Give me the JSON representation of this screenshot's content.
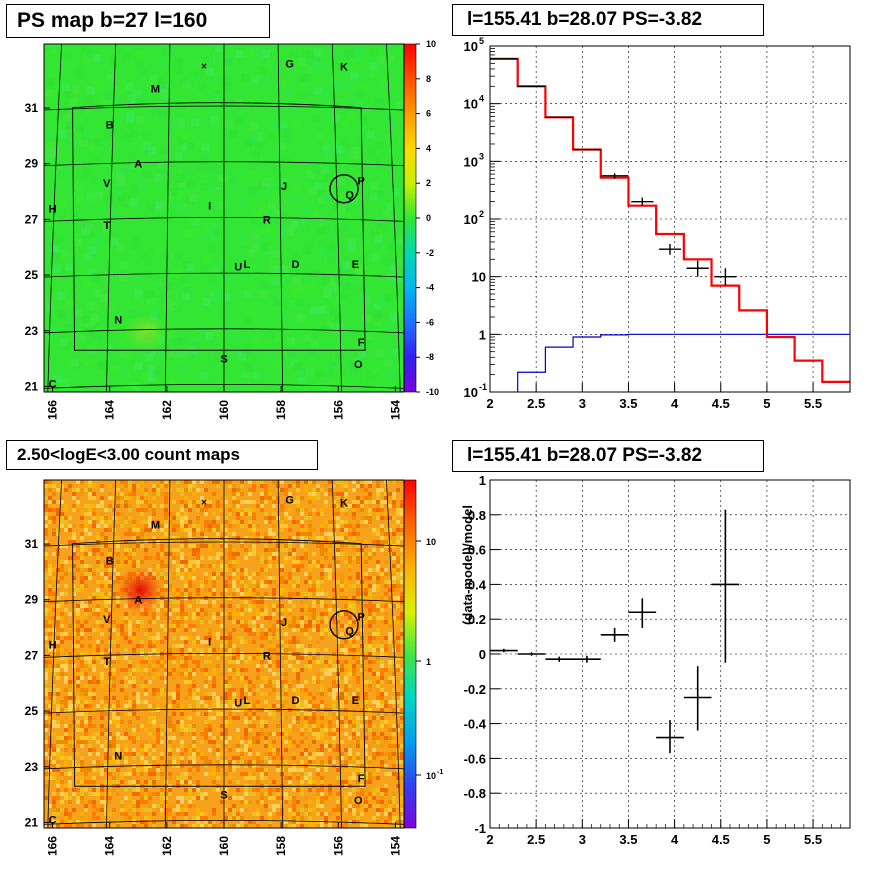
{
  "panels": {
    "top_left_title": "PS map b=27 l=160",
    "top_right_title": "l=155.41 b=28.07 PS=-3.82",
    "bottom_left_title": "2.50<logE<3.00 count maps",
    "bottom_right_title": "l=155.41 b=28.07 PS=-3.82"
  },
  "colors": {
    "map_green": "#33e633",
    "map_orange": "#f6a21d",
    "model_red": "#ff0000",
    "background_blue": "#0000cc",
    "data_black": "#000000"
  },
  "chart_data": [
    {
      "type": "heatmap",
      "title": "PS map b=27 l=160",
      "x_ticks": [
        "166",
        "164",
        "162",
        "160",
        "158",
        "156",
        "154"
      ],
      "y_ticks": [
        "31",
        "29",
        "27",
        "25",
        "23",
        "21"
      ],
      "colorbar_ticks": [
        "10",
        "8",
        "6",
        "4",
        "2",
        "0",
        "-2",
        "-4",
        "-6",
        "-8",
        "-10"
      ],
      "zlim": [
        -10,
        10
      ],
      "sources": [
        {
          "label": "G",
          "l": 157.7,
          "b": 32.6
        },
        {
          "label": "K",
          "l": 155.8,
          "b": 32.5
        },
        {
          "label": "M",
          "l": 162.4,
          "b": 31.7
        },
        {
          "label": "B",
          "l": 164.0,
          "b": 30.4
        },
        {
          "label": "A",
          "l": 163.0,
          "b": 29.0
        },
        {
          "label": "V",
          "l": 164.1,
          "b": 28.3
        },
        {
          "label": "J",
          "l": 157.9,
          "b": 28.2
        },
        {
          "label": "P",
          "l": 155.2,
          "b": 28.4
        },
        {
          "label": "Q",
          "l": 155.6,
          "b": 27.9
        },
        {
          "label": "H",
          "l": 166.0,
          "b": 27.4
        },
        {
          "label": "I",
          "l": 160.5,
          "b": 27.5
        },
        {
          "label": "R",
          "l": 158.5,
          "b": 27.0
        },
        {
          "label": "T",
          "l": 164.1,
          "b": 26.8
        },
        {
          "label": "U",
          "l": 159.5,
          "b": 25.3
        },
        {
          "label": "L",
          "l": 159.2,
          "b": 25.4
        },
        {
          "label": "D",
          "l": 157.5,
          "b": 25.4
        },
        {
          "label": "E",
          "l": 155.4,
          "b": 25.4
        },
        {
          "label": "N",
          "l": 163.7,
          "b": 23.4
        },
        {
          "label": "F",
          "l": 155.2,
          "b": 22.6
        },
        {
          "label": "S",
          "l": 160.0,
          "b": 22.0
        },
        {
          "label": "O",
          "l": 155.3,
          "b": 21.8
        },
        {
          "label": "C",
          "l": 166.0,
          "b": 21.1
        }
      ],
      "marker_x": {
        "l": 160.7,
        "b": 32.5
      },
      "circle": {
        "l": 155.8,
        "b": 28.1
      }
    },
    {
      "type": "line",
      "title": "l=155.41 b=28.07 PS=-3.82",
      "xlim": [
        2,
        5.9
      ],
      "ylim": [
        0.1,
        100000
      ],
      "yscale": "log",
      "x_ticks": [
        "2",
        "2.5",
        "3",
        "3.5",
        "4",
        "4.5",
        "5",
        "5.5"
      ],
      "y_ticks": [
        "10^-1",
        "1",
        "10",
        "10^2",
        "10^3",
        "10^4",
        "10^5"
      ],
      "grid": true,
      "model_bins": [
        {
          "x0": 2.0,
          "x1": 2.3,
          "y": 60000
        },
        {
          "x0": 2.3,
          "x1": 2.6,
          "y": 20000
        },
        {
          "x0": 2.6,
          "x1": 2.9,
          "y": 5800
        },
        {
          "x0": 2.9,
          "x1": 3.2,
          "y": 1600
        },
        {
          "x0": 3.2,
          "x1": 3.5,
          "y": 520
        },
        {
          "x0": 3.5,
          "x1": 3.8,
          "y": 170
        },
        {
          "x0": 3.8,
          "x1": 4.1,
          "y": 55
        },
        {
          "x0": 4.1,
          "x1": 4.4,
          "y": 20
        },
        {
          "x0": 4.4,
          "x1": 4.7,
          "y": 7
        },
        {
          "x0": 4.7,
          "x1": 5.0,
          "y": 2.6
        },
        {
          "x0": 5.0,
          "x1": 5.3,
          "y": 0.9
        },
        {
          "x0": 5.3,
          "x1": 5.6,
          "y": 0.35
        },
        {
          "x0": 5.6,
          "x1": 5.9,
          "y": 0.15
        }
      ],
      "background_bins": [
        {
          "x0": 2.3,
          "x1": 2.6,
          "y": 0.22
        },
        {
          "x0": 2.6,
          "x1": 2.9,
          "y": 0.6
        },
        {
          "x0": 2.9,
          "x1": 3.2,
          "y": 0.9
        },
        {
          "x0": 3.2,
          "x1": 3.5,
          "y": 0.98
        },
        {
          "x0": 3.5,
          "x1": 5.9,
          "y": 1.0
        }
      ],
      "data_points": [
        {
          "x": 2.15,
          "y": 60000,
          "dx": 0.15
        },
        {
          "x": 2.45,
          "y": 20000,
          "dx": 0.15
        },
        {
          "x": 2.75,
          "y": 5800,
          "dx": 0.15
        },
        {
          "x": 3.05,
          "y": 1600,
          "dx": 0.15
        },
        {
          "x": 3.35,
          "y": 560,
          "dx": 0.15,
          "ylo": 500,
          "yhi": 620
        },
        {
          "x": 3.65,
          "y": 200,
          "dx": 0.12,
          "ylo": 170,
          "yhi": 235
        },
        {
          "x": 3.95,
          "y": 30,
          "dx": 0.12,
          "ylo": 24,
          "yhi": 37
        },
        {
          "x": 4.25,
          "y": 14,
          "dx": 0.12,
          "ylo": 10,
          "yhi": 19
        },
        {
          "x": 4.55,
          "y": 10,
          "dx": 0.12,
          "ylo": 7,
          "yhi": 14
        }
      ]
    },
    {
      "type": "heatmap",
      "title": "2.50<logE<3.00 count maps",
      "x_ticks": [
        "166",
        "164",
        "162",
        "160",
        "158",
        "156",
        "154"
      ],
      "y_ticks": [
        "31",
        "29",
        "27",
        "25",
        "23",
        "21"
      ],
      "colorbar_ticks": [
        "10",
        "1",
        "10^-1"
      ],
      "zscale": "log",
      "sources": [
        {
          "label": "G",
          "l": 157.7,
          "b": 32.6
        },
        {
          "label": "K",
          "l": 155.8,
          "b": 32.5
        },
        {
          "label": "M",
          "l": 162.4,
          "b": 31.7
        },
        {
          "label": "B",
          "l": 164.0,
          "b": 30.4
        },
        {
          "label": "A",
          "l": 163.0,
          "b": 29.0
        },
        {
          "label": "V",
          "l": 164.1,
          "b": 28.3
        },
        {
          "label": "J",
          "l": 157.9,
          "b": 28.2
        },
        {
          "label": "P",
          "l": 155.2,
          "b": 28.4
        },
        {
          "label": "Q",
          "l": 155.6,
          "b": 27.9
        },
        {
          "label": "H",
          "l": 166.0,
          "b": 27.4
        },
        {
          "label": "I",
          "l": 160.5,
          "b": 27.5
        },
        {
          "label": "R",
          "l": 158.5,
          "b": 27.0
        },
        {
          "label": "T",
          "l": 164.1,
          "b": 26.8
        },
        {
          "label": "U",
          "l": 159.5,
          "b": 25.3
        },
        {
          "label": "L",
          "l": 159.2,
          "b": 25.4
        },
        {
          "label": "D",
          "l": 157.5,
          "b": 25.4
        },
        {
          "label": "E",
          "l": 155.4,
          "b": 25.4
        },
        {
          "label": "N",
          "l": 163.7,
          "b": 23.4
        },
        {
          "label": "F",
          "l": 155.2,
          "b": 22.6
        },
        {
          "label": "S",
          "l": 160.0,
          "b": 22.0
        },
        {
          "label": "O",
          "l": 155.3,
          "b": 21.8
        },
        {
          "label": "C",
          "l": 166.0,
          "b": 21.1
        }
      ],
      "marker_x": {
        "l": 160.7,
        "b": 32.5
      },
      "circle": {
        "l": 155.8,
        "b": 28.1
      }
    },
    {
      "type": "scatter",
      "title": "l=155.41 b=28.07 PS=-3.82",
      "ylabel": "(data-model)/model",
      "xlim": [
        2,
        5.9
      ],
      "ylim": [
        -1,
        1
      ],
      "x_ticks": [
        "2",
        "2.5",
        "3",
        "3.5",
        "4",
        "4.5",
        "5",
        "5.5"
      ],
      "y_ticks": [
        "1",
        "0.8",
        "0.6",
        "0.4",
        "0.2",
        "0",
        "-0.2",
        "-0.4",
        "-0.6",
        "-0.8",
        "-1"
      ],
      "grid": true,
      "points": [
        {
          "x": 2.15,
          "y": 0.02,
          "dx": 0.15,
          "ylo": 0.01,
          "yhi": 0.03
        },
        {
          "x": 2.45,
          "y": 0.0,
          "dx": 0.15,
          "ylo": -0.01,
          "yhi": 0.01
        },
        {
          "x": 2.75,
          "y": -0.03,
          "dx": 0.15,
          "ylo": -0.045,
          "yhi": -0.015
        },
        {
          "x": 3.05,
          "y": -0.03,
          "dx": 0.15,
          "ylo": -0.05,
          "yhi": -0.01
        },
        {
          "x": 3.35,
          "y": 0.11,
          "dx": 0.15,
          "ylo": 0.07,
          "yhi": 0.15
        },
        {
          "x": 3.65,
          "y": 0.24,
          "dx": 0.15,
          "ylo": 0.15,
          "yhi": 0.32
        },
        {
          "x": 3.95,
          "y": -0.48,
          "dx": 0.15,
          "ylo": -0.57,
          "yhi": -0.38
        },
        {
          "x": 4.25,
          "y": -0.25,
          "dx": 0.15,
          "ylo": -0.44,
          "yhi": -0.07
        },
        {
          "x": 4.55,
          "y": 0.4,
          "dx": 0.15,
          "ylo": -0.05,
          "yhi": 0.83
        }
      ]
    }
  ]
}
